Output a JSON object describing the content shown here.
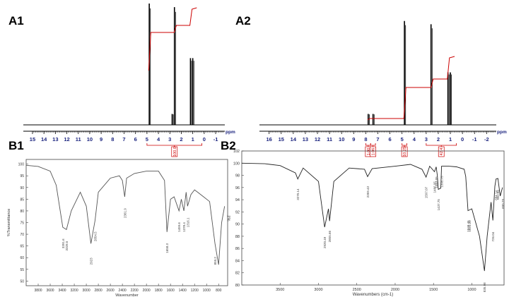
{
  "panels": {
    "a1": "A1",
    "a2": "A2",
    "b1": "B1",
    "b2": "B2"
  },
  "chart_data": [
    {
      "panel": "A1",
      "type": "line",
      "xlabel": "ppm",
      "xlim": [
        15.8,
        -1.8
      ],
      "x_reversed": true,
      "ticks": [
        "15",
        "14",
        "13",
        "12",
        "11",
        "10",
        "9",
        "8",
        "7",
        "6",
        "5",
        "4",
        "3",
        "2",
        "1",
        "0",
        "-1"
      ],
      "peaks": [
        {
          "ppm": 4.8,
          "height": 1.0
        },
        {
          "ppm": 2.6,
          "height": 0.97
        },
        {
          "ppm": 2.8,
          "height": 0.09
        },
        {
          "ppm": 1.2,
          "height": 0.55
        },
        {
          "ppm": 1.0,
          "height": 0.55
        }
      ],
      "integral_labels": [
        "100.0"
      ],
      "colors": {
        "spectrum": "#000000",
        "integral": "#cc0000",
        "axis_text": "#1a237e"
      }
    },
    {
      "panel": "A2",
      "type": "line",
      "xlabel": "ppm",
      "xlim": [
        16.8,
        -2.8
      ],
      "x_reversed": true,
      "ticks": [
        "16",
        "15",
        "14",
        "13",
        "12",
        "11",
        "10",
        "9",
        "8",
        "7",
        "6",
        "5",
        "4",
        "3",
        "2",
        "1",
        "0",
        "-1",
        "-2"
      ],
      "peaks": [
        {
          "ppm": 7.8,
          "height": 0.1
        },
        {
          "ppm": 7.4,
          "height": 0.1
        },
        {
          "ppm": 4.8,
          "height": 0.95
        },
        {
          "ppm": 2.6,
          "height": 0.92
        },
        {
          "ppm": 1.2,
          "height": 0.48
        },
        {
          "ppm": 1.0,
          "height": 0.48
        }
      ],
      "integral_labels": [
        "1.00",
        "1.06",
        "10.25",
        "42.4"
      ],
      "colors": {
        "spectrum": "#000000",
        "integral": "#cc0000",
        "axis_text": "#1a237e"
      }
    },
    {
      "panel": "B1",
      "type": "line",
      "xlabel": "Wavenumber",
      "ylabel": "%Transmittance",
      "xlim": [
        4000,
        650
      ],
      "ylim": [
        48,
        102
      ],
      "xticks": [
        "3800",
        "3600",
        "3400",
        "3200",
        "3000",
        "2800",
        "2600",
        "2400",
        "2200",
        "2000",
        "1800",
        "1600",
        "1400",
        "1200",
        "1000",
        "800"
      ],
      "yticks": [
        "100",
        "95",
        "90",
        "85",
        "80",
        "75",
        "70",
        "65",
        "60",
        "55",
        "50"
      ],
      "x": [
        4000,
        3800,
        3600,
        3500,
        3391,
        3330,
        3250,
        3100,
        3000,
        2923,
        2854,
        2800,
        2600,
        2450,
        2400,
        2362,
        2330,
        2200,
        2000,
        1800,
        1700,
        1658,
        1600,
        1540,
        1459,
        1420,
        1378,
        1340,
        1316,
        1260,
        1200,
        1150,
        1050,
        950,
        860,
        800,
        750,
        700
      ],
      "y": [
        99.5,
        99,
        97,
        91,
        73,
        72,
        80,
        88,
        82,
        66,
        76,
        88,
        94,
        95,
        93,
        86,
        94,
        96,
        97,
        97,
        93,
        71,
        85,
        86,
        80,
        85,
        80,
        88,
        82,
        87,
        89,
        88,
        86,
        84,
        66,
        57,
        75,
        82
      ],
      "annotations": [
        "3391.6",
        "3328.5",
        "2923",
        "2854.5",
        "2361.9",
        "1658.3",
        "1459.6",
        "1378.4",
        "1316.1",
        "859.2"
      ],
      "colors": {
        "line": "#555555"
      }
    },
    {
      "panel": "B2",
      "type": "line",
      "xlabel": "Wavenumbers (cm-1)",
      "ylabel": "%T",
      "xlim": [
        4000,
        580
      ],
      "ylim": [
        80,
        102
      ],
      "xticks": [
        "3500",
        "3000",
        "2500",
        "2000",
        "1500",
        "1000"
      ],
      "yticks": [
        "102",
        "100",
        "98",
        "96",
        "94",
        "92",
        "90",
        "88",
        "86",
        "84",
        "82",
        "80"
      ],
      "x": [
        4000,
        3700,
        3500,
        3300,
        3270,
        3200,
        3000,
        2920,
        2870,
        2855,
        2800,
        2600,
        2400,
        2359,
        2300,
        2000,
        1800,
        1650,
        1597,
        1550,
        1487,
        1465,
        1450,
        1437,
        1405,
        1395,
        1300,
        1200,
        1100,
        1080,
        1050,
        1000,
        900,
        835,
        800,
        750,
        726,
        700,
        684,
        660,
        630,
        600
      ],
      "y": [
        100,
        99.9,
        99.6,
        98.4,
        97.4,
        99.2,
        97,
        89.5,
        92.5,
        90.5,
        97,
        99.2,
        99,
        97.8,
        99.1,
        99.5,
        99.8,
        99,
        97.7,
        99.5,
        98.6,
        99.4,
        98,
        95.7,
        95.9,
        99.5,
        99.5,
        99.4,
        99,
        97.8,
        92.2,
        92.5,
        88,
        82.3,
        88,
        93.6,
        90.6,
        96.2,
        97.4,
        97.5,
        94.6,
        96
      ],
      "annotations": [
        "3270.14",
        "2920.49",
        "2855.66",
        "2359.43",
        "1597.07",
        "1486.95",
        "1463.05",
        "1437.75",
        "1395.75",
        "1048.45",
        "1031.20",
        "835.98",
        "726.04",
        "684.14",
        "661.95",
        "600.29"
      ],
      "colors": {
        "line": "#222222"
      }
    }
  ]
}
